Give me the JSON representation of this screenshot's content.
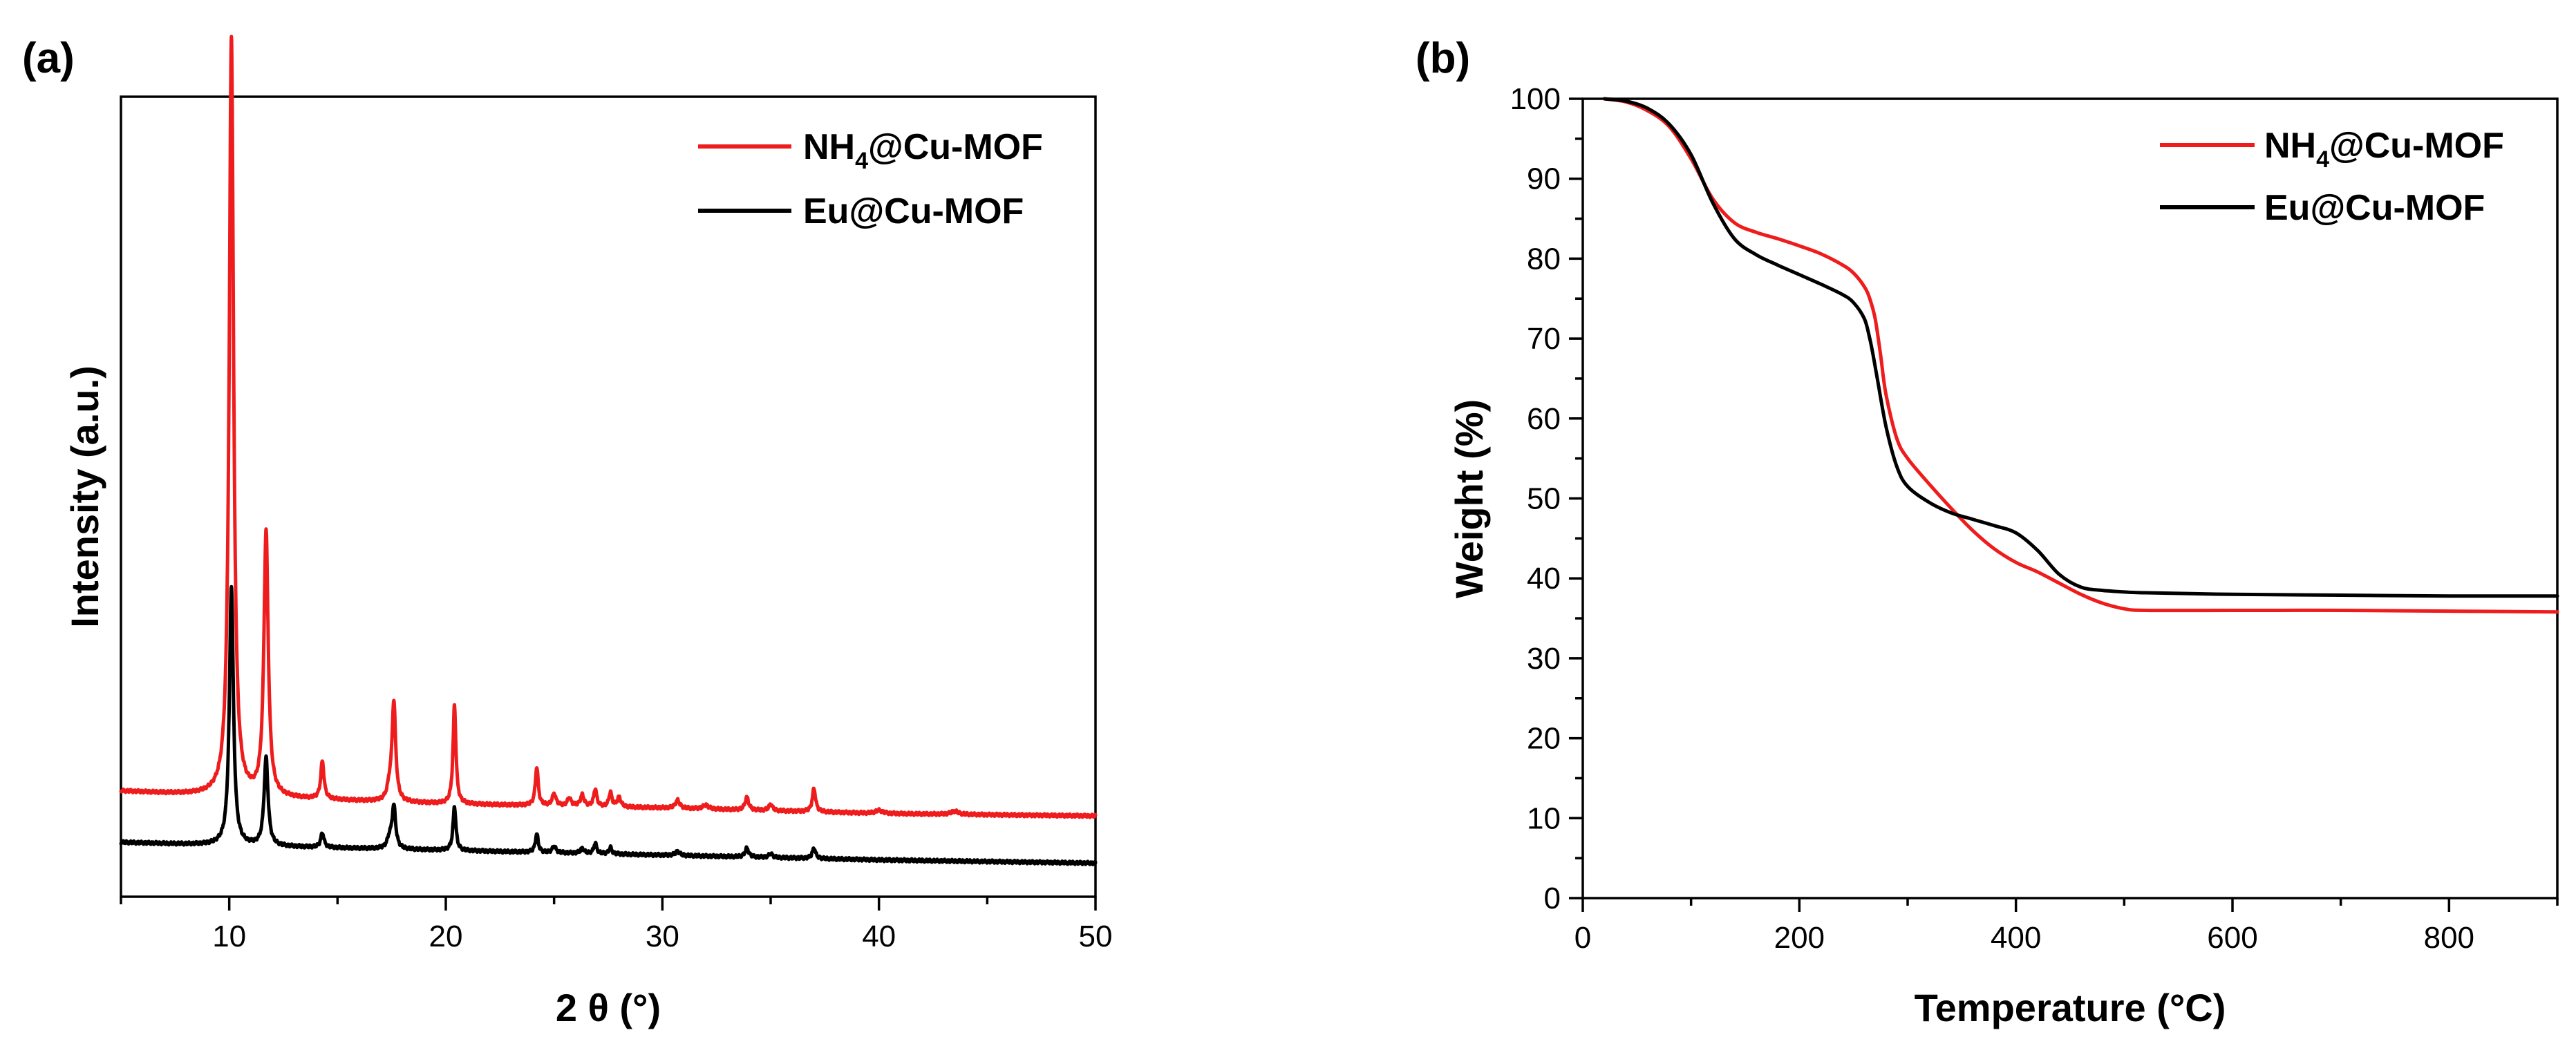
{
  "colors": {
    "red": "#ee1c1c",
    "black": "#000000"
  },
  "chart_data": [
    {
      "type": "line",
      "panel_label": "(a)",
      "title": "",
      "xlabel": "2 θ (°)",
      "ylabel": "Intensity (a.u.)",
      "xlim": [
        5,
        50
      ],
      "ylim": [
        0,
        100
      ],
      "x_ticks": [
        10,
        20,
        30,
        40,
        50
      ],
      "y_ticks_shown": false,
      "legend_position": "top-right",
      "series": [
        {
          "name": "NH4@Cu-MOF",
          "name_main": "NH",
          "name_sub": "4",
          "name_rest": "@Cu-MOF",
          "color": "#ee1c1c",
          "baseline": [
            [
              5,
              13.2
            ],
            [
              10,
              12.5
            ],
            [
              20,
              11.6
            ],
            [
              30,
              11.1
            ],
            [
              40,
              10.4
            ],
            [
              50,
              10.1
            ]
          ],
          "peaks": [
            [
              10.1,
              95.0,
              0.12
            ],
            [
              11.7,
              33.0,
              0.12
            ],
            [
              14.3,
              4.7,
              0.09
            ],
            [
              17.4,
              1.5,
              0.12
            ],
            [
              17.6,
              12.4,
              0.1
            ],
            [
              20.4,
              12.3,
              0.08
            ],
            [
              24.2,
              4.8,
              0.08
            ],
            [
              25.0,
              1.5,
              0.1
            ],
            [
              25.7,
              1.0,
              0.1
            ],
            [
              26.3,
              1.4,
              0.1
            ],
            [
              26.9,
              2.2,
              0.08
            ],
            [
              27.6,
              1.8,
              0.08
            ],
            [
              28.0,
              1.2,
              0.1
            ],
            [
              30.7,
              1.0,
              0.12
            ],
            [
              32.0,
              0.5,
              0.15
            ],
            [
              33.9,
              1.6,
              0.1
            ],
            [
              35.0,
              0.8,
              0.1
            ],
            [
              37.0,
              2.9,
              0.09
            ],
            [
              40.0,
              0.4,
              0.2
            ],
            [
              43.5,
              0.4,
              0.2
            ]
          ]
        },
        {
          "name": "Eu@Cu-MOF",
          "name_main": "Eu@Cu-MOF",
          "name_sub": "",
          "name_rest": "",
          "color": "#000000",
          "baseline": [
            [
              5,
              6.8
            ],
            [
              10,
              6.4
            ],
            [
              20,
              5.8
            ],
            [
              30,
              5.2
            ],
            [
              40,
              4.6
            ],
            [
              50,
              4.2
            ]
          ],
          "peaks": [
            [
              10.1,
              32.5,
              0.11
            ],
            [
              11.7,
              11.0,
              0.11
            ],
            [
              14.3,
              1.8,
              0.09
            ],
            [
              17.4,
              1.2,
              0.12
            ],
            [
              17.6,
              5.3,
              0.1
            ],
            [
              20.4,
              5.5,
              0.08
            ],
            [
              24.2,
              2.3,
              0.08
            ],
            [
              25.0,
              0.8,
              0.1
            ],
            [
              26.3,
              0.6,
              0.1
            ],
            [
              26.9,
              1.3,
              0.08
            ],
            [
              27.6,
              0.8,
              0.08
            ],
            [
              30.7,
              0.5,
              0.12
            ],
            [
              33.9,
              1.1,
              0.1
            ],
            [
              35.0,
              0.5,
              0.1
            ],
            [
              37.0,
              1.3,
              0.09
            ]
          ]
        }
      ]
    },
    {
      "type": "line",
      "panel_label": "(b)",
      "title": "",
      "xlabel": "Temperature (°C)",
      "ylabel": "Weight (%)",
      "xlim": [
        0,
        900
      ],
      "ylim": [
        0,
        100
      ],
      "x_ticks": [
        0,
        200,
        400,
        600,
        800
      ],
      "y_ticks": [
        0,
        10,
        20,
        30,
        40,
        50,
        60,
        70,
        80,
        90,
        100
      ],
      "legend_position": "top-right",
      "series": [
        {
          "name": "NH4@Cu-MOF",
          "name_main": "NH",
          "name_sub": "4",
          "name_rest": "@Cu-MOF",
          "color": "#ee1c1c",
          "x": [
            20,
            40,
            60,
            80,
            100,
            120,
            140,
            160,
            180,
            200,
            220,
            240,
            250,
            260,
            265,
            270,
            275,
            280,
            290,
            300,
            320,
            340,
            360,
            380,
            400,
            420,
            440,
            460,
            480,
            500,
            520,
            600,
            700,
            800,
            900
          ],
          "y": [
            100,
            99.6,
            98.5,
            96.5,
            92.5,
            87.5,
            84.5,
            83.3,
            82.5,
            81.6,
            80.6,
            79.2,
            78.2,
            76.5,
            75.0,
            72.5,
            68.0,
            63.0,
            57.5,
            55.0,
            51.8,
            48.8,
            46.0,
            43.7,
            42.0,
            40.8,
            39.4,
            38.0,
            36.9,
            36.2,
            36.0,
            36.0,
            36.0,
            35.9,
            35.8
          ]
        },
        {
          "name": "Eu@Cu-MOF",
          "name_main": "Eu@Cu-MOF",
          "name_sub": "",
          "name_rest": "",
          "color": "#000000",
          "x": [
            20,
            40,
            60,
            80,
            100,
            120,
            140,
            160,
            180,
            200,
            220,
            240,
            250,
            260,
            265,
            268,
            272,
            280,
            290,
            300,
            320,
            340,
            360,
            380,
            400,
            420,
            440,
            460,
            480,
            500,
            520,
            600,
            700,
            800,
            900
          ],
          "y": [
            100,
            99.7,
            98.8,
            96.8,
            93.0,
            87.0,
            82.5,
            80.5,
            79.2,
            78.0,
            76.8,
            75.5,
            74.5,
            72.5,
            70.0,
            68.0,
            65.0,
            59.0,
            54.0,
            51.5,
            49.5,
            48.2,
            47.4,
            46.6,
            45.7,
            43.5,
            40.5,
            38.9,
            38.5,
            38.3,
            38.2,
            38.0,
            37.9,
            37.8,
            37.8
          ]
        }
      ]
    }
  ]
}
